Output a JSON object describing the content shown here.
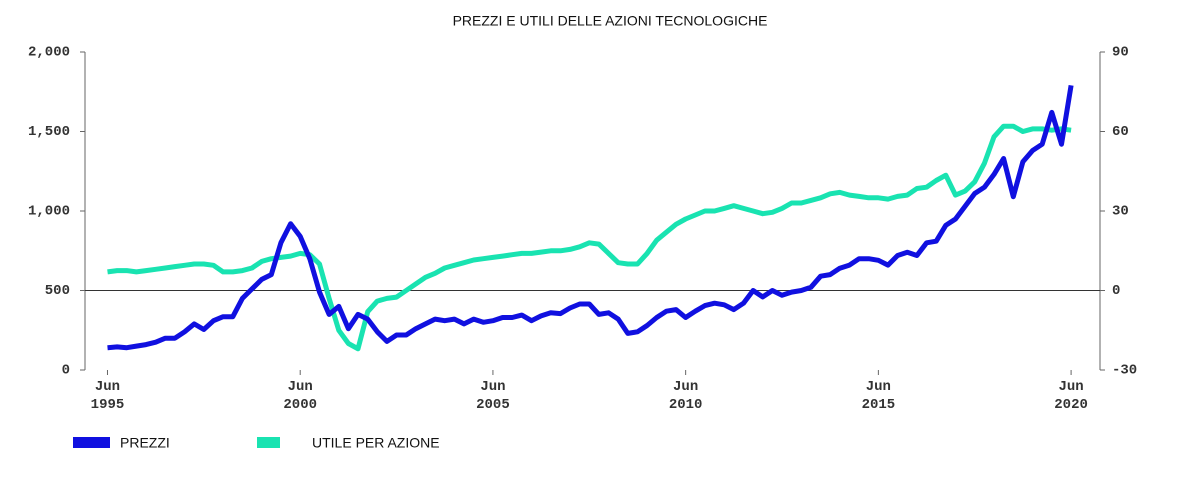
{
  "chart_data": {
    "type": "line",
    "title": "PREZZI E UTILI DELLE AZIONI TECNOLOGICHE",
    "x": [
      "1995-06",
      "1995-09",
      "1995-12",
      "1996-03",
      "1996-06",
      "1996-09",
      "1996-12",
      "1997-03",
      "1997-06",
      "1997-09",
      "1997-12",
      "1998-03",
      "1998-06",
      "1998-09",
      "1998-12",
      "1999-03",
      "1999-06",
      "1999-09",
      "1999-12",
      "2000-03",
      "2000-06",
      "2000-09",
      "2000-12",
      "2001-03",
      "2001-06",
      "2001-09",
      "2001-12",
      "2002-03",
      "2002-06",
      "2002-09",
      "2002-12",
      "2003-03",
      "2003-06",
      "2003-09",
      "2003-12",
      "2004-03",
      "2004-06",
      "2004-09",
      "2004-12",
      "2005-03",
      "2005-06",
      "2005-09",
      "2005-12",
      "2006-03",
      "2006-06",
      "2006-09",
      "2006-12",
      "2007-03",
      "2007-06",
      "2007-09",
      "2007-12",
      "2008-03",
      "2008-06",
      "2008-09",
      "2008-12",
      "2009-03",
      "2009-06",
      "2009-09",
      "2009-12",
      "2010-03",
      "2010-06",
      "2010-09",
      "2010-12",
      "2011-03",
      "2011-06",
      "2011-09",
      "2011-12",
      "2012-03",
      "2012-06",
      "2012-09",
      "2012-12",
      "2013-03",
      "2013-06",
      "2013-09",
      "2013-12",
      "2014-03",
      "2014-06",
      "2014-09",
      "2014-12",
      "2015-03",
      "2015-06",
      "2015-09",
      "2015-12",
      "2016-03",
      "2016-06",
      "2016-09",
      "2016-12",
      "2017-03",
      "2017-06",
      "2017-09",
      "2017-12",
      "2018-03",
      "2018-06",
      "2018-09",
      "2018-12",
      "2019-03",
      "2019-06",
      "2019-09",
      "2019-12",
      "2020-03",
      "2020-06"
    ],
    "series": [
      {
        "name": "PREZZI",
        "color": "#1010e0",
        "values": [
          140,
          145,
          140,
          150,
          160,
          175,
          200,
          200,
          240,
          290,
          255,
          310,
          335,
          335,
          450,
          510,
          570,
          600,
          800,
          920,
          840,
          700,
          490,
          350,
          400,
          260,
          350,
          320,
          240,
          180,
          220,
          220,
          260,
          290,
          320,
          310,
          320,
          290,
          320,
          300,
          310,
          330,
          330,
          345,
          310,
          340,
          360,
          355,
          390,
          415,
          415,
          350,
          360,
          320,
          230,
          240,
          280,
          330,
          370,
          380,
          330,
          370,
          405,
          420,
          410,
          380,
          420,
          500,
          460,
          500,
          470,
          490,
          500,
          520,
          590,
          600,
          640,
          660,
          700,
          700,
          690,
          660,
          720,
          740,
          720,
          800,
          810,
          910,
          950,
          1030,
          1110,
          1150,
          1230,
          1330,
          1090,
          1310,
          1380,
          1420,
          1620,
          1420,
          1790
        ]
      },
      {
        "name": "UTILE PER AZIONE",
        "color": "#19e3b1",
        "axis": "y2",
        "values": [
          7,
          7.5,
          7.5,
          7,
          7.5,
          8,
          8.5,
          9,
          9.5,
          10,
          10,
          9.5,
          7,
          7,
          7.5,
          8.5,
          11,
          12,
          12.5,
          13,
          14,
          13.5,
          10,
          -3,
          -15,
          -20,
          -22,
          -8,
          -4,
          -3,
          -2.5,
          0,
          2.5,
          5,
          6.5,
          8.5,
          9.5,
          10.5,
          11.5,
          12,
          12.5,
          13,
          13.5,
          14,
          14,
          14.5,
          15,
          15,
          15.5,
          16.5,
          18,
          17.5,
          14,
          10.5,
          10,
          10,
          14,
          19,
          22,
          25,
          27,
          28.5,
          30,
          30,
          31,
          32,
          31,
          30,
          29,
          29.5,
          31,
          33,
          33,
          34,
          35,
          36.5,
          37,
          36,
          35.5,
          35,
          35,
          34.5,
          35.5,
          36,
          38.5,
          39,
          41.5,
          43.5,
          36,
          37.5,
          41,
          48,
          58,
          62,
          62,
          60,
          61,
          61,
          60.5,
          61,
          60.5
        ]
      }
    ],
    "xlim": [
      "1994-11",
      "2021-03"
    ],
    "xticks": [
      {
        "value": "1995-06",
        "label": "Jun 1995"
      },
      {
        "value": "2000-06",
        "label": "Jun 2000"
      },
      {
        "value": "2005-06",
        "label": "Jun 2005"
      },
      {
        "value": "2010-06",
        "label": "Jun 2010"
      },
      {
        "value": "2015-06",
        "label": "Jun 2015"
      },
      {
        "value": "2020-06",
        "label": "Jun 2020"
      }
    ],
    "ylim": [
      0,
      2000
    ],
    "yticks": [
      0,
      500,
      {
        "value": 1000,
        "label": "1,000"
      },
      {
        "value": 1500,
        "label": "1,500"
      },
      {
        "value": 2000,
        "label": "2,000"
      }
    ],
    "y2lim": [
      -30,
      90
    ],
    "y2ticks": [
      -30,
      0,
      30,
      60,
      90
    ],
    "y2_zero_line": true,
    "legend": "bottom-left"
  }
}
